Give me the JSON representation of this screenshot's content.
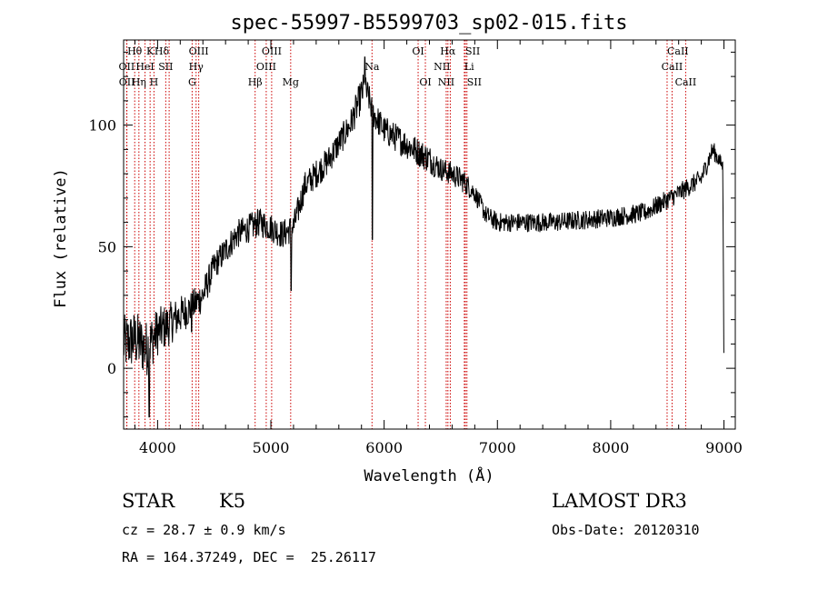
{
  "chart_data": {
    "type": "line",
    "title": "spec-55997-B5599703_sp02-015.fits",
    "xlabel": "Wavelength (Å)",
    "ylabel": "Flux (relative)",
    "xlim": [
      3700,
      9100
    ],
    "ylim": [
      -25,
      135
    ],
    "xticks": [
      4000,
      5000,
      6000,
      7000,
      8000,
      9000
    ],
    "yticks": [
      0,
      50,
      100
    ],
    "line_color": "#000000",
    "marker_color": "#cc0000",
    "spectrum_anchors": {
      "x": [
        3700,
        3800,
        3900,
        4000,
        4100,
        4200,
        4300,
        4400,
        4500,
        4700,
        4900,
        5000,
        5100,
        5200,
        5300,
        5500,
        5700,
        5780,
        5820,
        5860,
        5900,
        6000,
        6200,
        6400,
        6500,
        6600,
        6700,
        6800,
        6900,
        7000,
        7200,
        7500,
        8000,
        8300,
        8450,
        8600,
        8800,
        8900,
        8990,
        9000
      ],
      "y": [
        10,
        12,
        8,
        15,
        18,
        22,
        25,
        30,
        42,
        55,
        60,
        58,
        55,
        58,
        75,
        85,
        100,
        110,
        115,
        112,
        105,
        98,
        92,
        86,
        82,
        80,
        77,
        72,
        63,
        60,
        60,
        60,
        62,
        64,
        68,
        72,
        78,
        90,
        83,
        -2
      ],
      "noise": [
        12,
        12,
        12,
        10,
        9,
        8,
        7,
        7,
        6,
        6,
        6,
        6,
        6,
        6,
        6,
        6,
        6,
        7,
        7,
        6,
        6,
        6,
        6,
        6,
        5,
        5,
        5,
        4,
        4,
        4,
        4,
        4,
        4,
        4,
        4,
        4,
        4,
        4,
        3,
        0
      ]
    },
    "spectrum_features": [
      {
        "x": 5830,
        "y": 128
      },
      {
        "x": 5895,
        "y": 53
      },
      {
        "x": 5180,
        "y": 32
      },
      {
        "x": 4300,
        "y": 15
      },
      {
        "x": 3925,
        "y": -20
      }
    ],
    "spectral_lines": [
      {
        "label": "Hδ",
        "x": 4102,
        "row": 0,
        "anchor": "end"
      },
      {
        "label": "K",
        "x": 3934,
        "row": 0,
        "anchor": "middle"
      },
      {
        "label": "Hθ",
        "x": 3798,
        "row": 0,
        "anchor": "middle"
      },
      {
        "label": "OIII",
        "x": 4363,
        "row": 0,
        "anchor": "middle"
      },
      {
        "label": "OIII",
        "x": 5007,
        "row": 0,
        "anchor": "middle"
      },
      {
        "label": "OI",
        "x": 6300,
        "row": 0,
        "anchor": "middle"
      },
      {
        "label": "Hα",
        "x": 6563,
        "row": 0,
        "anchor": "middle"
      },
      {
        "label": "SII",
        "x": 6717,
        "row": 0,
        "anchor": "start"
      },
      {
        "label": "CaII",
        "x": 8498,
        "row": 0,
        "anchor": "start"
      },
      {
        "label": "OII",
        "x": 3727,
        "row": 1,
        "anchor": "middle"
      },
      {
        "label": "HeI",
        "x": 3889,
        "row": 1,
        "anchor": "middle"
      },
      {
        "label": "SII",
        "x": 4072,
        "row": 1,
        "anchor": "middle"
      },
      {
        "label": "Hγ",
        "x": 4340,
        "row": 1,
        "anchor": "middle"
      },
      {
        "label": "OIII",
        "x": 4959,
        "row": 1,
        "anchor": "middle"
      },
      {
        "label": "Na",
        "x": 5893,
        "row": 1,
        "anchor": "middle"
      },
      {
        "label": "NII",
        "x": 6584,
        "row": 1,
        "anchor": "end"
      },
      {
        "label": "Li",
        "x": 6708,
        "row": 1,
        "anchor": "start"
      },
      {
        "label": "CaII",
        "x": 8542,
        "row": 1,
        "anchor": "middle"
      },
      {
        "label": "OII",
        "x": 3729,
        "row": 2,
        "anchor": "middle"
      },
      {
        "label": "Hη",
        "x": 3835,
        "row": 2,
        "anchor": "middle"
      },
      {
        "label": "H",
        "x": 3968,
        "row": 2,
        "anchor": "middle"
      },
      {
        "label": "G",
        "x": 4305,
        "row": 2,
        "anchor": "middle"
      },
      {
        "label": "Hβ",
        "x": 4861,
        "row": 2,
        "anchor": "middle"
      },
      {
        "label": "Mg",
        "x": 5175,
        "row": 2,
        "anchor": "middle"
      },
      {
        "label": "OI",
        "x": 6364,
        "row": 2,
        "anchor": "middle"
      },
      {
        "label": "NII",
        "x": 6548,
        "row": 2,
        "anchor": "middle"
      },
      {
        "label": "SII",
        "x": 6731,
        "row": 2,
        "anchor": "start"
      },
      {
        "label": "CaII",
        "x": 8662,
        "row": 2,
        "anchor": "middle"
      }
    ]
  },
  "footer": {
    "class_label": "STAR",
    "subclass_label": "K5",
    "redshift_line": "cz = 28.7 ± 0.9 km/s",
    "coords_line": "RA = 164.37249, DEC =  25.26117",
    "survey_label": "LAMOST DR3",
    "obs_date_line": "Obs-Date: 20120310"
  }
}
